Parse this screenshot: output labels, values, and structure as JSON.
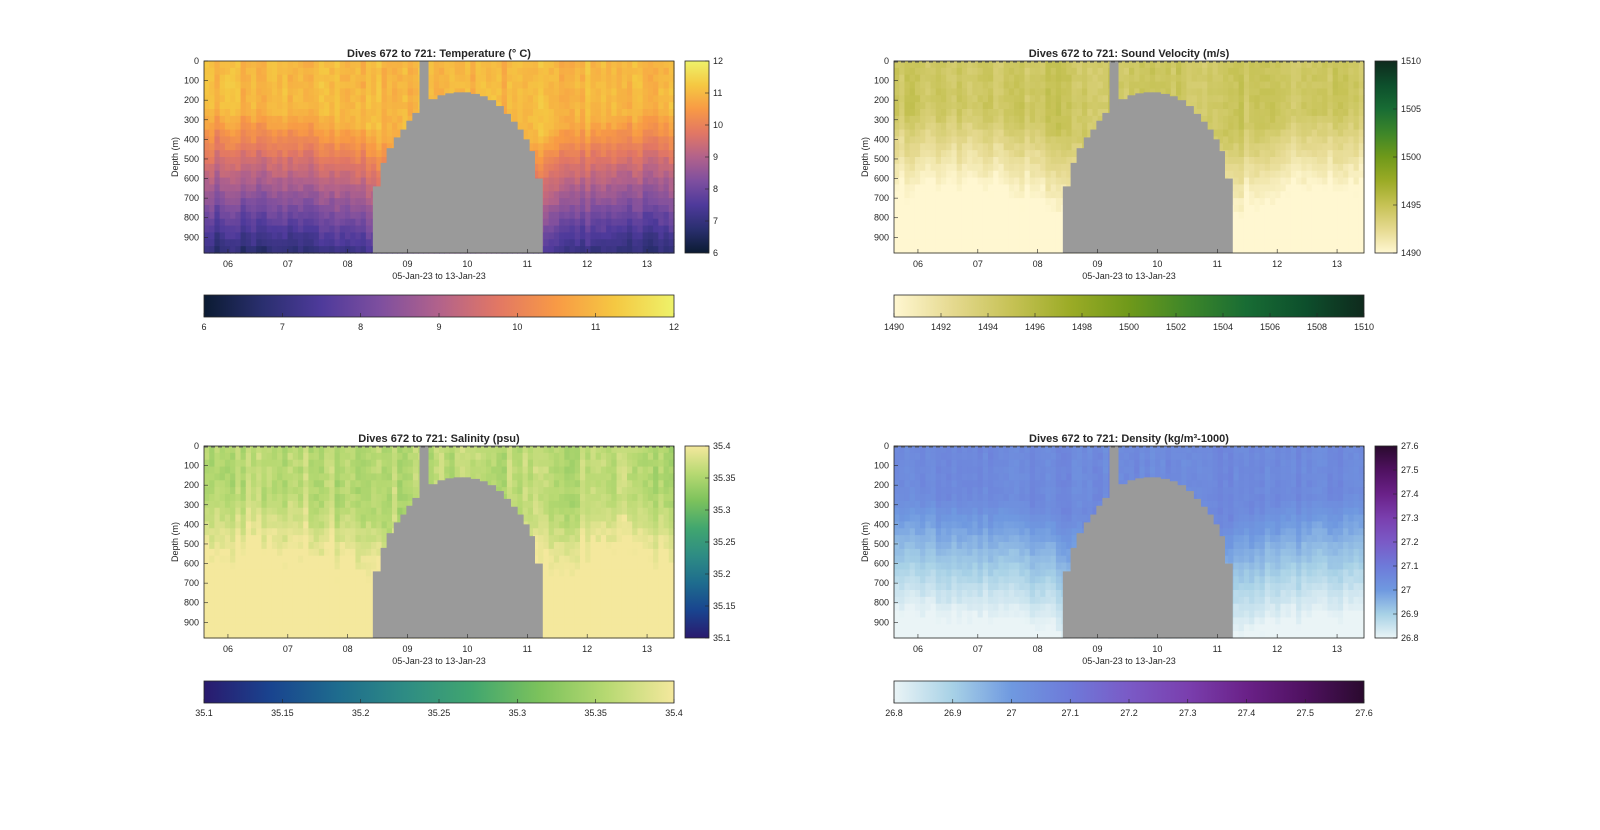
{
  "figure": {
    "background": "#ffffff"
  },
  "chart_data": [
    {
      "type": "heatmap",
      "title": "Dives 672 to 721: Temperature (° C)",
      "xlabel": "05-Jan-23 to 13-Jan-23",
      "ylabel": "Depth (m)",
      "xticks": [
        "06",
        "07",
        "08",
        "09",
        "10",
        "11",
        "12",
        "13"
      ],
      "xlim": [
        5.6,
        13.45
      ],
      "ylim": [
        0,
        980
      ],
      "yticks": [
        0,
        100,
        200,
        300,
        400,
        500,
        600,
        700,
        800,
        900
      ],
      "y_reversed": true,
      "colorbar": {
        "ticks": [
          "6",
          "7",
          "8",
          "9",
          "10",
          "11",
          "12"
        ],
        "range": [
          6,
          12
        ],
        "colors": [
          "#0b1b32",
          "#2a2f6f",
          "#4e3a9b",
          "#7e4f9f",
          "#b2628b",
          "#e27764",
          "#f89a45",
          "#f5c842",
          "#eef26a"
        ]
      },
      "surface": {
        "value": 11.0,
        "gradient": 0.85,
        "noise": 0.15
      },
      "mask_color": "#9a9a9a",
      "dashed_surface": false
    },
    {
      "type": "heatmap",
      "title": "Dives 672 to 721: Sound Velocity (m/s)",
      "xlabel": "05-Jan-23 to 13-Jan-23",
      "ylabel": "Depth (m)",
      "xticks": [
        "06",
        "07",
        "08",
        "09",
        "10",
        "11",
        "12",
        "13"
      ],
      "xlim": [
        5.6,
        13.45
      ],
      "ylim": [
        0,
        980
      ],
      "yticks": [
        0,
        100,
        200,
        300,
        400,
        500,
        600,
        700,
        800,
        900
      ],
      "y_reversed": true,
      "colorbar": {
        "ticks": [
          "1490",
          "1492",
          "1494",
          "1496",
          "1498",
          "1500",
          "1502",
          "1504",
          "1506",
          "1508",
          "1510"
        ],
        "side_ticks": [
          "1510",
          "1505",
          "1500",
          "1495",
          "1490"
        ],
        "range": [
          1490,
          1510
        ],
        "colors": [
          "#fff7d1",
          "#e5d98f",
          "#c6c255",
          "#9bab26",
          "#6f991a",
          "#3d8629",
          "#186c34",
          "#0d4f2c",
          "#0f2a1d"
        ]
      },
      "surface": {
        "value": 1494.5,
        "gradient": 0.5,
        "noise": 0.12
      },
      "mask_color": "#9a9a9a",
      "dashed_surface": true
    },
    {
      "type": "heatmap",
      "title": "Dives 672 to 721: Salinity (psu)",
      "xlabel": "05-Jan-23 to 13-Jan-23",
      "ylabel": "Depth (m)",
      "xticks": [
        "06",
        "07",
        "08",
        "09",
        "10",
        "11",
        "12",
        "13"
      ],
      "xlim": [
        5.6,
        13.45
      ],
      "ylim": [
        0,
        980
      ],
      "yticks": [
        0,
        100,
        200,
        300,
        400,
        500,
        600,
        700,
        800,
        900
      ],
      "y_reversed": true,
      "colorbar": {
        "ticks": [
          "35.1",
          "35.15",
          "35.2",
          "35.25",
          "35.3",
          "35.35",
          "35.4"
        ],
        "side_ticks": [
          "35.4",
          "35.35",
          "35.3",
          "35.25",
          "35.2",
          "35.15",
          "35.1"
        ],
        "range": [
          35.1,
          35.4
        ],
        "colors": [
          "#2a1a6e",
          "#19448f",
          "#1e6c8e",
          "#2e8c84",
          "#41a66f",
          "#7cc25c",
          "#b7d972",
          "#f4e89d"
        ]
      },
      "surface": {
        "value": 35.36,
        "gradient": -0.45,
        "noise": 0.2
      },
      "mask_color": "#9a9a9a",
      "dashed_surface": true
    },
    {
      "type": "heatmap",
      "title": "Dives 672 to 721: Density (kg/m³-1000)",
      "xlabel": "05-Jan-23 to 13-Jan-23",
      "ylabel": "Depth (m)",
      "xticks": [
        "06",
        "07",
        "08",
        "09",
        "10",
        "11",
        "12",
        "13"
      ],
      "xlim": [
        5.6,
        13.45
      ],
      "ylim": [
        0,
        980
      ],
      "yticks": [
        0,
        100,
        200,
        300,
        400,
        500,
        600,
        700,
        800,
        900
      ],
      "y_reversed": true,
      "colorbar": {
        "ticks": [
          "26.8",
          "26.9",
          "27",
          "27.1",
          "27.2",
          "27.3",
          "27.4",
          "27.5",
          "27.6"
        ],
        "side_ticks": [
          "27.6",
          "27.5",
          "27.4",
          "27.3",
          "27.2",
          "27.1",
          "27",
          "26.9",
          "26.8"
        ],
        "range": [
          26.8,
          27.6
        ],
        "colors": [
          "#eaf4f6",
          "#a7d1e6",
          "#6f99e0",
          "#6e7ad9",
          "#7a5ac6",
          "#7a3fae",
          "#6a2188",
          "#4f1160",
          "#2a0a2e"
        ]
      },
      "surface": {
        "value": 27.05,
        "gradient": 0.45,
        "noise": 0.08
      },
      "mask_color": "#9a9a9a",
      "dashed_surface": true
    }
  ]
}
